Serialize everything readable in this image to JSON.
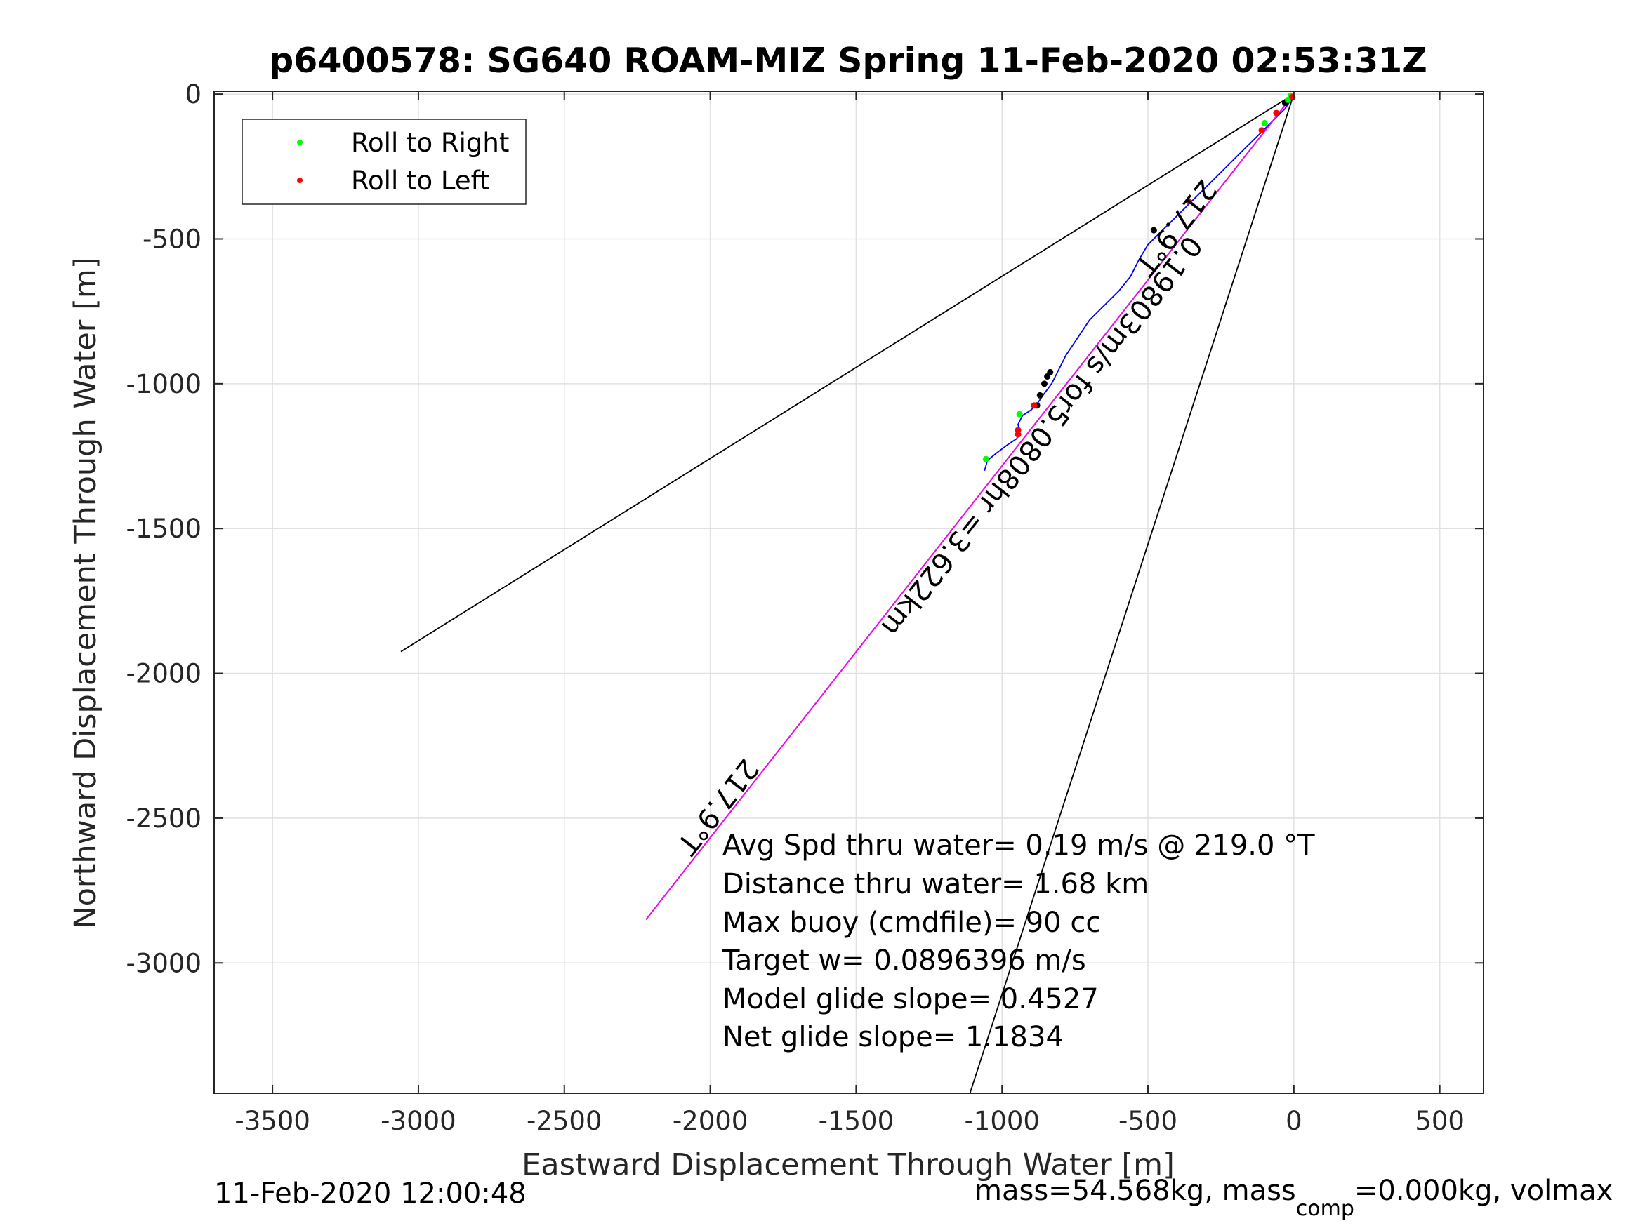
{
  "chart_data": {
    "type": "line",
    "title": "p6400578: SG640 ROAM-MIZ Spring 11-Feb-2020 02:53:31Z",
    "xlabel": "Eastward Displacement Through Water [m]",
    "ylabel": "Northward Displacement Through Water [m]",
    "xlim": [
      -3700,
      650
    ],
    "ylim": [
      -3450,
      10
    ],
    "xticks": [
      -3500,
      -3000,
      -2500,
      -2000,
      -1500,
      -1000,
      -500,
      0,
      500
    ],
    "yticks": [
      0,
      -500,
      -1000,
      -1500,
      -2000,
      -2500,
      -3000
    ],
    "grid": true,
    "legend": {
      "position": "top-left",
      "entries": [
        {
          "label": "Roll to Right",
          "color": "#00ff00"
        },
        {
          "label": "Roll to Left",
          "color": "#ff0000"
        }
      ]
    },
    "series": [
      {
        "color": "#0000ff",
        "x": [
          0,
          -10,
          -30,
          -60,
          -100,
          -150,
          -200,
          -250,
          -300,
          -340,
          -380,
          -420,
          -460,
          -500,
          -530,
          -560,
          -600,
          -650,
          -700,
          -740,
          -760,
          -780,
          -800,
          -830,
          -860,
          -880,
          -900,
          -930,
          -945,
          -940,
          -950,
          -980,
          -1020,
          -1050,
          -1060
        ],
        "y": [
          0,
          -20,
          -50,
          -80,
          -120,
          -170,
          -220,
          -270,
          -320,
          -360,
          -400,
          -440,
          -480,
          -520,
          -570,
          -630,
          -680,
          -730,
          -780,
          -840,
          -870,
          -900,
          -940,
          -1000,
          -1040,
          -1070,
          -1090,
          -1110,
          -1140,
          -1170,
          -1190,
          -1210,
          -1240,
          -1265,
          -1300
        ]
      },
      {
        "color": "#000000",
        "x": [
          0,
          -3060
        ],
        "y": [
          0,
          -1925
        ]
      },
      {
        "color": "#000000",
        "x": [
          0,
          -1110
        ],
        "y": [
          0,
          -3450
        ]
      },
      {
        "color": "#000000",
        "x": [
          0,
          -2220
        ],
        "y": [
          0,
          -2850
        ]
      },
      {
        "color": "#ff00ff",
        "x": [
          0,
          -2220
        ],
        "y": [
          0,
          -2850
        ]
      }
    ],
    "roll_right_points": {
      "x": [
        -10,
        -20,
        -100,
        -940,
        -1055
      ],
      "y": [
        -5,
        -20,
        -100,
        -1105,
        -1260
      ]
    },
    "roll_left_points": {
      "x": [
        -5,
        -60,
        -110,
        -360,
        -890,
        -945,
        -945
      ],
      "y": [
        -10,
        -65,
        -125,
        -370,
        -1075,
        -1160,
        -1175
      ]
    },
    "black_points": {
      "x": [
        -30,
        -480,
        -835,
        -845,
        -855,
        -870,
        -880
      ],
      "y": [
        -30,
        -470,
        -960,
        -975,
        -1000,
        -1040,
        -1075
      ]
    },
    "rotated_annotations": [
      {
        "text": "217.9°T",
        "x": -430,
        "y": -440
      },
      {
        "text": "0.19803m/s for5.0808hr =3.622km",
        "x": -890,
        "y": -1160
      },
      {
        "text": "217.9°T",
        "x": -2000,
        "y": -2440
      }
    ],
    "annotations": [
      "Avg Spd thru water=  0.19 m/s @ 219.0 °T",
      "Distance thru water=  1.68 km",
      "Max buoy (cmdfile)= 90 cc",
      "Target w= 0.0896396 m/s",
      "Model glide slope= 0.4527",
      "Net glide slope= 1.1834"
    ]
  },
  "footer": {
    "left": "11-Feb-2020 12:00:48",
    "right_prefix": "mass=54.568kg, mass",
    "right_sub": "comp",
    "right_suffix": "=0.000kg, volmax"
  }
}
